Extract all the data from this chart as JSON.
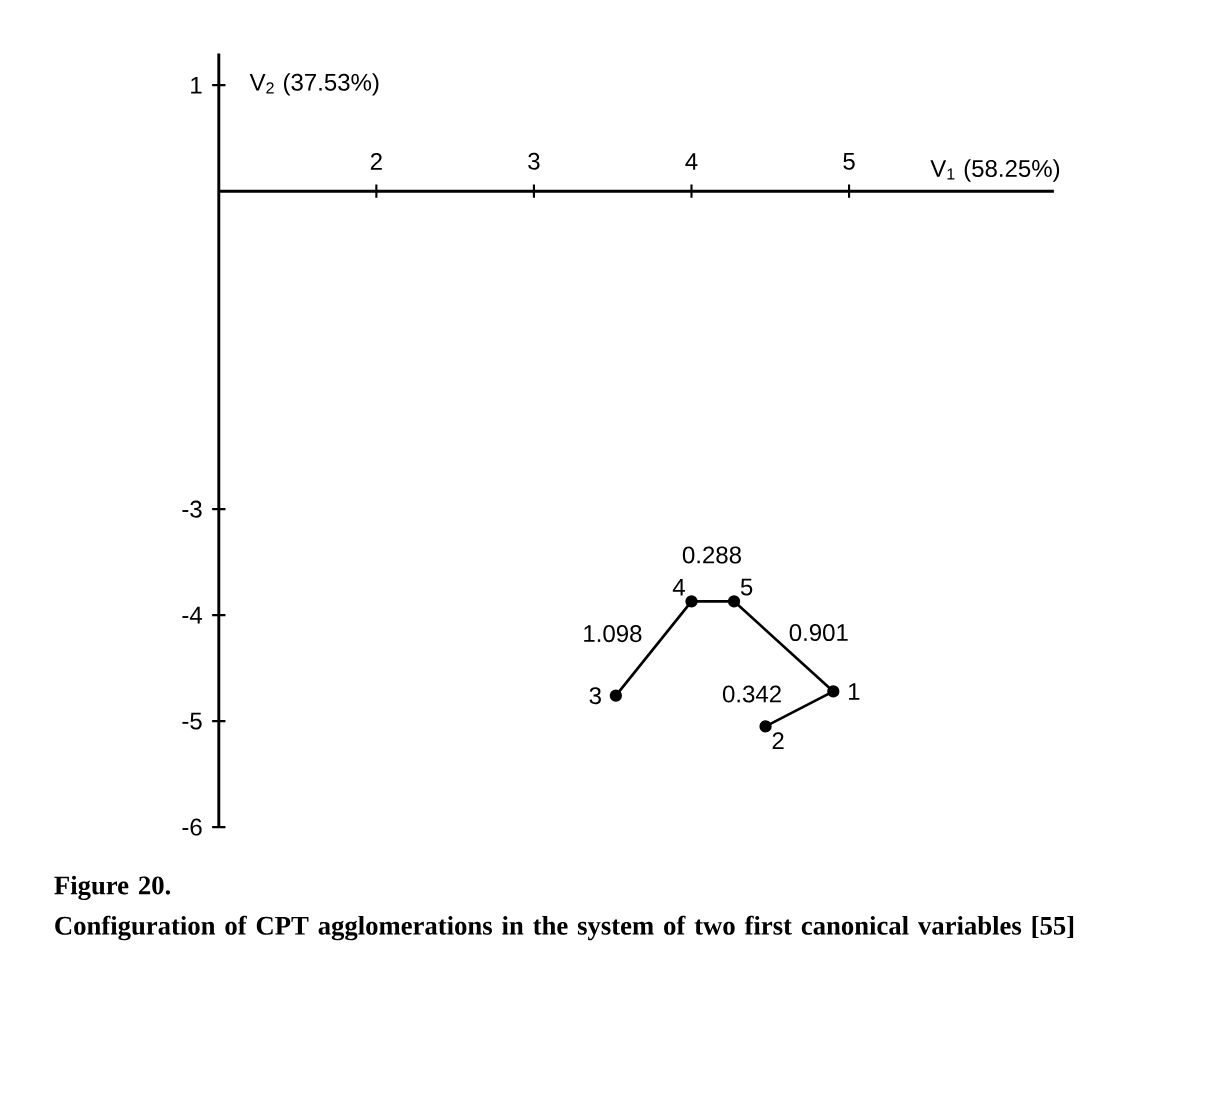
{
  "chart_data": {
    "type": "line",
    "xlabel": "V$_{1}$ (58.25%)",
    "ylabel": "V$_{2}$ (37.53%)",
    "xlim": [
      1,
      6.3
    ],
    "ylim": [
      -6,
      1.3
    ],
    "xticks": [
      2,
      3,
      4,
      5
    ],
    "yticks": [
      1,
      -3,
      -4,
      -5,
      -6
    ],
    "marker": "circle",
    "line_style": "solid",
    "series": [
      {
        "color": "#000000",
        "x": [
          3.52,
          4.0,
          4.27,
          4.9,
          4.47
        ],
        "values": [
          -4.76,
          -3.87,
          -3.87,
          -4.72,
          -5.05
        ]
      }
    ],
    "annotations": [
      {
        "text": "1",
        "x": 4.9,
        "y": -4.72
      },
      {
        "text": "2",
        "x": 4.47,
        "y": -5.05
      },
      {
        "text": "3",
        "x": 3.52,
        "y": -4.76
      },
      {
        "text": "4",
        "x": 4.0,
        "y": -3.87
      },
      {
        "text": "5",
        "x": 4.27,
        "y": -3.87
      },
      {
        "text": "1.098",
        "x": 3.76,
        "y": -4.31
      },
      {
        "text": "0.288",
        "x": 4.13,
        "y": -3.87
      },
      {
        "text": "0.901",
        "x": 4.58,
        "y": -4.3
      },
      {
        "text": "0.342",
        "x": 4.68,
        "y": -4.88
      },
      "Figure 20.",
      "Configuration of CPT agglomerations in the system of two first canonical variables [55]"
    ]
  }
}
